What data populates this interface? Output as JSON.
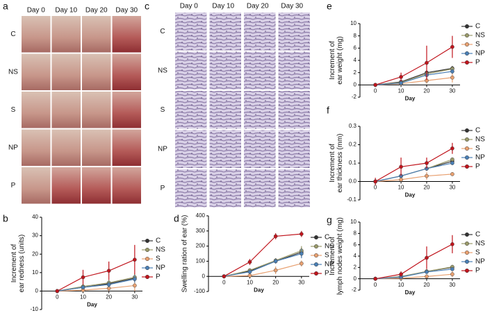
{
  "panels": [
    {
      "letter": "a",
      "columns": [
        "Day 0",
        "Day 10",
        "Day 20",
        "Day 30"
      ],
      "rows": [
        "C",
        "NS",
        "S",
        "NP",
        "P"
      ]
    },
    {
      "letter": "c",
      "columns": [
        "Day 0",
        "Day 10",
        "Day 20",
        "Day 30"
      ],
      "rows": [
        "C",
        "NS",
        "S",
        "NP",
        "P"
      ]
    }
  ],
  "chart_data": [
    {
      "type": "line",
      "panel": "e",
      "ylabel": [
        "Increment of",
        "ear weight (mg)"
      ],
      "xlabel": "Day",
      "x": [
        0,
        10,
        20,
        30
      ],
      "xlim": [
        -6,
        33
      ],
      "xticks": [
        0,
        10,
        20,
        30
      ],
      "ylim": [
        -2,
        10
      ],
      "yticks": [
        -2,
        0,
        2,
        4,
        6,
        8,
        10
      ],
      "series": [
        {
          "name": "C",
          "color": "#333333",
          "values": [
            0,
            0.5,
            2,
            2.7
          ],
          "errors": [
            0.2,
            0.3,
            0.4,
            0.4
          ]
        },
        {
          "name": "NS",
          "color": "#9a9a6a",
          "values": [
            0,
            0.4,
            1.8,
            2.6
          ],
          "errors": [
            0.2,
            0.3,
            0.4,
            0.4
          ]
        },
        {
          "name": "S",
          "color": "#e8a070",
          "values": [
            0,
            0.2,
            0.7,
            1.2
          ],
          "errors": [
            0.2,
            0.3,
            0.5,
            0.8
          ]
        },
        {
          "name": "NP",
          "color": "#4a7fb5",
          "values": [
            0,
            0.3,
            1.6,
            2.2
          ],
          "errors": [
            0.2,
            0.3,
            0.4,
            0.4
          ]
        },
        {
          "name": "P",
          "color": "#c0141c",
          "values": [
            0,
            1.3,
            3.6,
            6.2
          ],
          "errors": [
            0.3,
            0.7,
            2.8,
            1.8
          ]
        }
      ]
    },
    {
      "type": "line",
      "panel": "f",
      "ylabel": [
        "Increment of",
        "ear thickness (mm)"
      ],
      "xlabel": "Day",
      "x": [
        0,
        10,
        20,
        30
      ],
      "xlim": [
        -6,
        33
      ],
      "xticks": [
        0,
        10,
        20,
        30
      ],
      "ylim": [
        -0.1,
        0.3
      ],
      "yticks": [
        -0.1,
        {
          "value": 0,
          "label": "0.0"
        },
        0.1,
        0.2,
        0.3
      ],
      "series": [
        {
          "name": "C",
          "color": "#333333",
          "values": [
            0,
            0.03,
            0.07,
            0.11
          ],
          "errors": [
            0.01,
            0.01,
            0.01,
            0.01
          ]
        },
        {
          "name": "NS",
          "color": "#9a9a6a",
          "values": [
            0,
            0.03,
            0.07,
            0.12
          ],
          "errors": [
            0.01,
            0.01,
            0.01,
            0.01
          ]
        },
        {
          "name": "S",
          "color": "#e8a070",
          "values": [
            0,
            0.01,
            0.03,
            0.04
          ],
          "errors": [
            0.01,
            0.01,
            0.02,
            0.01
          ]
        },
        {
          "name": "NP",
          "color": "#4a7fb5",
          "values": [
            0,
            0.03,
            0.07,
            0.1
          ],
          "errors": [
            0.01,
            0.01,
            0.01,
            0.01
          ]
        },
        {
          "name": "P",
          "color": "#c0141c",
          "values": [
            0,
            0.08,
            0.1,
            0.18
          ],
          "errors": [
            0.02,
            0.05,
            0.03,
            0.03
          ]
        }
      ]
    },
    {
      "type": "line",
      "panel": "g",
      "ylabel": [
        "Increment of",
        "lymph nodes weight (mg)"
      ],
      "xlabel": "Day",
      "x": [
        0,
        10,
        20,
        30
      ],
      "xlim": [
        -6,
        33
      ],
      "xticks": [
        0,
        10,
        20,
        30
      ],
      "ylim": [
        -2,
        10
      ],
      "yticks": [
        -2,
        0,
        2,
        4,
        6,
        8,
        10
      ],
      "series": [
        {
          "name": "C",
          "color": "#333333",
          "values": [
            0,
            0.3,
            1.3,
            2
          ],
          "errors": [
            0.2,
            0.3,
            0.3,
            0.3
          ]
        },
        {
          "name": "NS",
          "color": "#9a9a6a",
          "values": [
            0,
            0.4,
            1.3,
            2.1
          ],
          "errors": [
            0.2,
            0.3,
            0.3,
            0.3
          ]
        },
        {
          "name": "S",
          "color": "#e8a070",
          "values": [
            0,
            0.1,
            0.4,
            0.8
          ],
          "errors": [
            0.2,
            0.2,
            0.3,
            0.5
          ]
        },
        {
          "name": "NP",
          "color": "#4a7fb5",
          "values": [
            0,
            0.3,
            1.2,
            1.7
          ],
          "errors": [
            0.2,
            0.3,
            0.3,
            0.3
          ]
        },
        {
          "name": "P",
          "color": "#c0141c",
          "values": [
            0,
            0.8,
            3.7,
            6.1
          ],
          "errors": [
            0.2,
            0.5,
            2,
            1.6
          ]
        }
      ]
    },
    {
      "type": "line",
      "panel": "b",
      "ylabel": [
        "Increment of",
        "ear redness (units)"
      ],
      "xlabel": "Day",
      "x": [
        0,
        10,
        20,
        30
      ],
      "xlim": [
        -6,
        33
      ],
      "xticks": [
        0,
        10,
        20,
        30
      ],
      "ylim": [
        -10,
        40
      ],
      "yticks": [
        -10,
        0,
        10,
        20,
        30,
        40
      ],
      "series": [
        {
          "name": "C",
          "color": "#333333",
          "values": [
            0,
            2,
            4,
            7
          ],
          "errors": [
            0,
            1,
            1.5,
            2
          ]
        },
        {
          "name": "NS",
          "color": "#9a9a6a",
          "values": [
            0,
            2.5,
            4.5,
            7.5
          ],
          "errors": [
            0,
            1,
            1.5,
            2
          ]
        },
        {
          "name": "S",
          "color": "#e8a070",
          "values": [
            0,
            0.5,
            1.5,
            3
          ],
          "errors": [
            0,
            1,
            1.5,
            3
          ]
        },
        {
          "name": "NP",
          "color": "#4a7fb5",
          "values": [
            0,
            2,
            3.5,
            6.5
          ],
          "errors": [
            0,
            1,
            1.5,
            2
          ]
        },
        {
          "name": "P",
          "color": "#c0141c",
          "values": [
            0,
            7.5,
            11,
            17
          ],
          "errors": [
            0,
            4,
            5,
            8
          ]
        }
      ]
    },
    {
      "type": "line",
      "panel": "d",
      "ylabel": [
        "Swelling ration of ear (%)"
      ],
      "xlabel": "Day",
      "x": [
        0,
        10,
        20,
        30
      ],
      "xlim": [
        -6,
        33
      ],
      "xticks": [
        0,
        10,
        20,
        30
      ],
      "ylim": [
        -100,
        400
      ],
      "yticks": [
        -100,
        0,
        100,
        200,
        300,
        400
      ],
      "series": [
        {
          "name": "C",
          "color": "#333333",
          "values": [
            0,
            35,
            100,
            160
          ],
          "errors": [
            0,
            10,
            15,
            30
          ]
        },
        {
          "name": "NS",
          "color": "#9a9a6a",
          "values": [
            0,
            40,
            105,
            170
          ],
          "errors": [
            0,
            10,
            15,
            30
          ]
        },
        {
          "name": "S",
          "color": "#e8a070",
          "values": [
            0,
            5,
            40,
            85
          ],
          "errors": [
            0,
            10,
            25,
            20
          ]
        },
        {
          "name": "NP",
          "color": "#4a7fb5",
          "values": [
            0,
            30,
            100,
            150
          ],
          "errors": [
            0,
            10,
            15,
            30
          ]
        },
        {
          "name": "P",
          "color": "#c0141c",
          "values": [
            0,
            95,
            265,
            280
          ],
          "errors": [
            0,
            20,
            20,
            20
          ]
        }
      ]
    }
  ]
}
